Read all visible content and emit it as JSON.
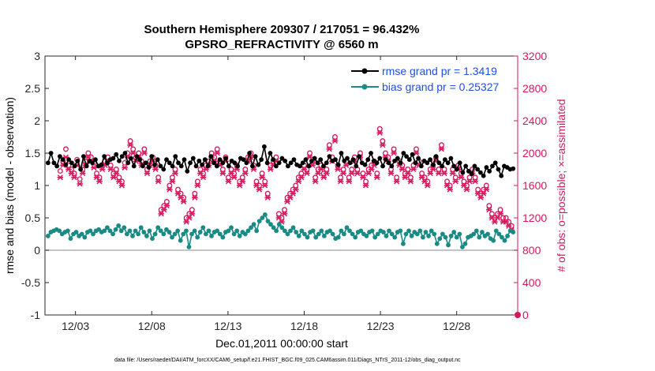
{
  "chart_data": {
    "type": "line",
    "title": "Southern Hemisphere 209307 / 217051 = 96.432%",
    "subtitle": "GPSRO_REFRACTIVITY @ 6560 m",
    "xlabel": "Dec.01,2011 00:00:00 start",
    "ylabel_left": "rmse and bias (model - observation)",
    "ylabel_right": "# of obs: o=possible; ×=assimilated",
    "x_ticks": [
      "12/03",
      "12/08",
      "12/13",
      "12/18",
      "12/23",
      "12/28"
    ],
    "x_tick_days": [
      2,
      7,
      12,
      17,
      22,
      27
    ],
    "xlim_days": [
      0,
      31
    ],
    "y_left_ticks": [
      "3",
      "2.5",
      "2",
      "1.5",
      "1",
      "0.5",
      "0",
      "-0.5",
      "-1"
    ],
    "ylim_left": [
      -1,
      3
    ],
    "y_right_ticks": [
      "3200",
      "2800",
      "2400",
      "2000",
      "1600",
      "1200",
      "800",
      "400",
      "0"
    ],
    "ylim_right": [
      0,
      3200
    ],
    "zero_line": 0,
    "legend_placement": "top-right",
    "colors": {
      "rmse": "#000000",
      "bias": "#1a8a85",
      "obs": "#d8175e",
      "right_axis": "#d8175e",
      "legend_text": "#1f4fe0",
      "zero_line": "#b0b0b0"
    },
    "series": [
      {
        "name": "rmse grand pr = 1.3419",
        "values": [
          1.35,
          1.5,
          1.35,
          1.3,
          1.45,
          1.4,
          1.32,
          1.4,
          1.35,
          1.3,
          1.38,
          1.25,
          1.45,
          1.3,
          1.38,
          1.35,
          1.4,
          1.3,
          1.32,
          1.45,
          1.35,
          1.4,
          1.42,
          1.48,
          1.38,
          1.45,
          1.5,
          1.35,
          1.42,
          1.3,
          1.45,
          1.4,
          1.3,
          1.35,
          1.28,
          1.45,
          1.32,
          1.4,
          1.3,
          1.25,
          1.4,
          1.35,
          1.3,
          1.45,
          1.35,
          1.3,
          1.4,
          1.22,
          1.35,
          1.42,
          1.3,
          1.38,
          1.32,
          1.4,
          1.3,
          1.45,
          1.35,
          1.3,
          1.4,
          1.35,
          1.42,
          1.3,
          1.38,
          1.35,
          1.3,
          1.42,
          1.4,
          1.35,
          1.5,
          1.3,
          1.45,
          1.32,
          1.4,
          1.6,
          1.35,
          1.5,
          1.4,
          1.3,
          1.35,
          1.42,
          1.38,
          1.3,
          1.35,
          1.4,
          1.32,
          1.3,
          1.35,
          1.4,
          1.3,
          1.38,
          1.42,
          1.35,
          1.4,
          1.3,
          1.35,
          1.45,
          1.38,
          1.4,
          1.32,
          1.5,
          1.38,
          1.42,
          1.35,
          1.4,
          1.3,
          1.45,
          1.35,
          1.32,
          1.4,
          1.5,
          1.38,
          1.35,
          1.42,
          1.3,
          1.4,
          1.35,
          1.3,
          1.38,
          1.42,
          1.35,
          1.5,
          1.45,
          1.4,
          1.48,
          1.35,
          1.42,
          1.3,
          1.38,
          1.35,
          1.4,
          1.32,
          1.45,
          1.35,
          1.3,
          1.4,
          1.35,
          1.42,
          1.3,
          1.25,
          1.35,
          1.2,
          1.3,
          1.22,
          1.18,
          1.3,
          1.25,
          1.2,
          1.15,
          1.28,
          1.22,
          1.3,
          1.35,
          1.25,
          1.15,
          1.3,
          1.28,
          1.25,
          1.26
        ]
      },
      {
        "name": "bias grand pr = 0.25327",
        "values": [
          0.22,
          0.28,
          0.3,
          0.32,
          0.3,
          0.25,
          0.28,
          0.3,
          0.18,
          0.25,
          0.28,
          0.22,
          0.25,
          0.2,
          0.28,
          0.3,
          0.25,
          0.3,
          0.32,
          0.28,
          0.3,
          0.35,
          0.3,
          0.25,
          0.32,
          0.38,
          0.3,
          0.35,
          0.25,
          0.3,
          0.22,
          0.3,
          0.25,
          0.35,
          0.28,
          0.22,
          0.3,
          0.18,
          0.25,
          0.35,
          0.3,
          0.25,
          0.32,
          0.28,
          0.2,
          0.25,
          0.3,
          0.15,
          0.25,
          0.3,
          0.05,
          0.25,
          0.3,
          0.2,
          0.28,
          0.35,
          0.25,
          0.3,
          0.22,
          0.28,
          0.3,
          0.25,
          0.2,
          0.28,
          0.3,
          0.35,
          0.25,
          0.3,
          0.22,
          0.28,
          0.25,
          0.3,
          0.35,
          0.4,
          0.3,
          0.45,
          0.5,
          0.55,
          0.45,
          0.4,
          0.35,
          0.3,
          0.4,
          0.35,
          0.3,
          0.25,
          0.3,
          0.35,
          0.28,
          0.22,
          0.3,
          0.25,
          0.2,
          0.28,
          0.3,
          0.2,
          0.25,
          0.3,
          0.22,
          0.28,
          0.3,
          0.25,
          0.18,
          0.2,
          0.3,
          0.25,
          0.35,
          0.3,
          0.25,
          0.2,
          0.28,
          0.3,
          0.25,
          0.22,
          0.28,
          0.3,
          0.2,
          0.25,
          0.3,
          0.28,
          0.22,
          0.3,
          0.25,
          0.2,
          0.28,
          0.3,
          0.1,
          0.25,
          0.3,
          0.22,
          0.28,
          0.25,
          0.3,
          0.2,
          0.28,
          0.22,
          0.3,
          0.25,
          0.1,
          0.18,
          0.25,
          0.2,
          0.08,
          0.22,
          0.28,
          0.2,
          0.25,
          0.05,
          0.1,
          0.2,
          0.22,
          0.25,
          0.3,
          0.2,
          0.28,
          0.22,
          0.25,
          0.18,
          0.15,
          0.3,
          0.25,
          0.2,
          0.15,
          0.22,
          0.3,
          0.28
        ]
      },
      {
        "name": "possible",
        "marker": "o",
        "values": [
          1780,
          1900,
          2050,
          1850,
          1800,
          1750,
          1920,
          1680,
          1800,
          1900,
          2000,
          1950,
          1880,
          1750,
          1700,
          1850,
          1900,
          1950,
          1850,
          1750,
          1800,
          1700,
          1650,
          1880,
          2000,
          2150,
          2050,
          1950,
          2000,
          1900,
          2050,
          1800,
          1900,
          1950,
          1850,
          1700,
          1300,
          1350,
          1400,
          1600,
          1700,
          1800,
          1550,
          1500,
          1450,
          1200,
          1250,
          1300,
          1500,
          1650,
          1800,
          1750,
          1850,
          1900,
          2000,
          1950,
          2050,
          1900,
          1800,
          1950,
          1700,
          1800,
          1750,
          1850,
          1650,
          1700,
          1800,
          1950,
          2000,
          1850,
          1650,
          1600,
          1750,
          1650,
          1500,
          1850,
          1900,
          1950,
          1250,
          1200,
          1300,
          1450,
          1500,
          1550,
          1600,
          1700,
          1750,
          1850,
          1800,
          2000,
          1900,
          1700,
          1800,
          1850,
          1750,
          1800,
          2100,
          1950,
          2200,
          1850,
          1700,
          1800,
          1900,
          1700,
          1800,
          1950,
          1800,
          2000,
          1750,
          1650,
          1800,
          1850,
          1900,
          1750,
          2300,
          2150,
          2000,
          1950,
          1800,
          2050,
          1700,
          1900,
          1850,
          1750,
          1800,
          1700,
          1850,
          2050,
          1900,
          1750,
          1700,
          1650,
          1800,
          1850,
          1950,
          1800,
          2100,
          1800,
          1650,
          1600,
          1800,
          1700,
          1850,
          1750,
          1650,
          1600,
          1700,
          1800,
          1700,
          1550,
          1500,
          1550,
          1600,
          1350,
          1250,
          1200,
          1250,
          1300,
          1200,
          1200,
          1150,
          1100
        ]
      },
      {
        "name": "assimilated",
        "marker": "x",
        "values": [
          1700,
          1850,
          1950,
          1800,
          1750,
          1700,
          1850,
          1620,
          1750,
          1850,
          1950,
          1900,
          1820,
          1700,
          1650,
          1800,
          1850,
          1900,
          1800,
          1700,
          1750,
          1650,
          1600,
          1820,
          1950,
          2100,
          2000,
          1900,
          1950,
          1850,
          2000,
          1750,
          1850,
          1900,
          1800,
          1650,
          1250,
          1300,
          1350,
          1550,
          1650,
          1750,
          1500,
          1450,
          1400,
          1150,
          1200,
          1250,
          1450,
          1600,
          1750,
          1700,
          1800,
          1850,
          1950,
          1900,
          2000,
          1850,
          1750,
          1900,
          1650,
          1750,
          1700,
          1800,
          1600,
          1650,
          1750,
          1900,
          1950,
          1800,
          1600,
          1550,
          1700,
          1600,
          1450,
          1800,
          1850,
          1900,
          1200,
          1150,
          1250,
          1400,
          1450,
          1500,
          1550,
          1650,
          1700,
          1800,
          1750,
          1950,
          1850,
          1650,
          1750,
          1800,
          1700,
          1750,
          2050,
          1900,
          2150,
          1800,
          1650,
          1750,
          1850,
          1650,
          1750,
          1900,
          1750,
          1950,
          1700,
          1600,
          1750,
          1800,
          1850,
          1700,
          2250,
          2100,
          1950,
          1900,
          1750,
          2000,
          1650,
          1850,
          1800,
          1700,
          1750,
          1650,
          1800,
          2000,
          1850,
          1700,
          1650,
          1600,
          1750,
          1800,
          1900,
          1750,
          2050,
          1750,
          1600,
          1550,
          1750,
          1650,
          1800,
          1700,
          1600,
          1550,
          1650,
          1750,
          1650,
          1500,
          1450,
          1500,
          1550,
          1300,
          1200,
          1150,
          1200,
          1250,
          1150,
          1150,
          1100,
          1050
        ]
      }
    ],
    "footnote": "data file: /Users/raeder/DAI/ATM_forcXX/CAM6_setup/f.e21.FHIST_BGC.f09_025.CAM6assim.011/Diags_NTrS_2011-12/obs_diag_output.nc"
  }
}
